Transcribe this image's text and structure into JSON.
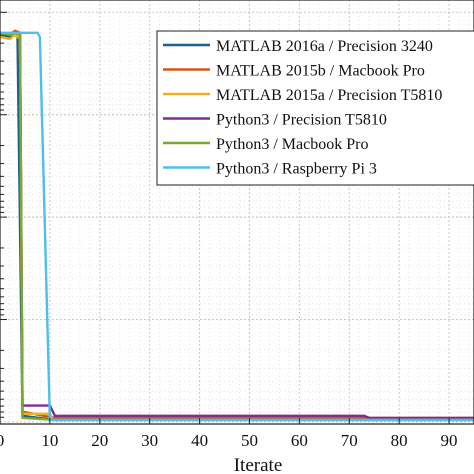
{
  "chart_data": {
    "type": "line",
    "title": "",
    "xlabel": "Iterate",
    "ylabel": "",
    "x_ticks": [
      "0",
      "10",
      "20",
      "30",
      "40",
      "50",
      "60",
      "70",
      "80",
      "90"
    ],
    "xlim": [
      0,
      95
    ],
    "y_scale": "log",
    "y_decades": 4,
    "grid": "dotted major and minor",
    "legend_position": "top-right",
    "series": [
      {
        "name": "MATLAB 2016a / Precision 3240",
        "color": "#1f5f8b",
        "points": [
          [
            0,
            0.055
          ],
          [
            2,
            0.06
          ],
          [
            2.5,
            0.05
          ],
          [
            3.5,
            0.06
          ],
          [
            4.5,
            0.985
          ],
          [
            11,
            0.995
          ],
          [
            95,
            0.995
          ]
        ]
      },
      {
        "name": "MATLAB 2015b / Macbook Pro",
        "color": "#d95319",
        "points": [
          [
            0,
            0.05
          ],
          [
            2,
            0.055
          ],
          [
            3,
            0.045
          ],
          [
            4,
            0.05
          ],
          [
            4.5,
            0.975
          ],
          [
            11,
            0.99
          ],
          [
            95,
            0.99
          ]
        ]
      },
      {
        "name": "MATLAB 2015a / Precision T5810",
        "color": "#edb120",
        "points": [
          [
            0,
            0.06
          ],
          [
            2,
            0.065
          ],
          [
            3,
            0.055
          ],
          [
            4,
            0.065
          ],
          [
            4.5,
            0.98
          ],
          [
            10,
            0.98
          ],
          [
            10.5,
            0.995
          ],
          [
            95,
            0.995
          ]
        ]
      },
      {
        "name": "Python3 / Precision T5810",
        "color": "#7e2f8e",
        "points": [
          [
            0,
            0.05
          ],
          [
            2,
            0.055
          ],
          [
            3,
            0.05
          ],
          [
            4,
            0.05
          ],
          [
            4.5,
            0.96
          ],
          [
            10,
            0.96
          ],
          [
            11,
            0.985
          ],
          [
            73,
            0.985
          ],
          [
            74,
            0.99
          ],
          [
            95,
            0.99
          ]
        ]
      },
      {
        "name": "Python3 / Macbook Pro",
        "color": "#77ac30",
        "points": [
          [
            0,
            0.05
          ],
          [
            2,
            0.055
          ],
          [
            3,
            0.05
          ],
          [
            4,
            0.055
          ],
          [
            4.5,
            0.99
          ],
          [
            11,
            0.995
          ],
          [
            95,
            0.995
          ]
        ]
      },
      {
        "name": "Python3 / Raspberry Pi 3",
        "color": "#4dbeee",
        "points": [
          [
            0,
            0.05
          ],
          [
            7.5,
            0.05
          ],
          [
            8,
            0.06
          ],
          [
            10,
            0.995
          ],
          [
            95,
            0.995
          ]
        ]
      }
    ]
  }
}
